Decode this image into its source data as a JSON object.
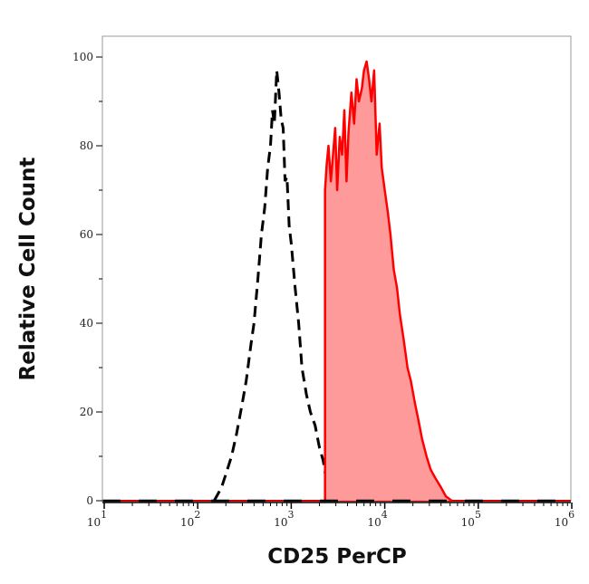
{
  "chart_data": {
    "type": "area",
    "title": "",
    "xlabel": "CD25 PerCP",
    "ylabel": "Relative Cell Count",
    "x_scale": "log",
    "xlim": [
      7,
      1000000
    ],
    "ylim": [
      0,
      100
    ],
    "x_ticks": [
      {
        "base": "10",
        "exp": "1",
        "value": 10
      },
      {
        "base": "10",
        "exp": "2",
        "value": 100
      },
      {
        "base": "10",
        "exp": "3",
        "value": 1000
      },
      {
        "base": "10",
        "exp": "4",
        "value": 10000
      },
      {
        "base": "10",
        "exp": "5",
        "value": 100000
      },
      {
        "base": "10",
        "exp": "6",
        "value": 1000000
      }
    ],
    "y_ticks": [
      "0",
      "20",
      "40",
      "60",
      "80",
      "100"
    ],
    "grid": false,
    "series": [
      {
        "style": "dashed-line",
        "color": "#000000",
        "x": [
          150,
          180,
          200,
          230,
          260,
          300,
          330,
          370,
          400,
          440,
          480,
          520,
          560,
          600,
          630,
          660,
          700,
          740,
          780,
          820,
          860,
          900,
          950,
          1000,
          1100,
          1200,
          1300,
          1450,
          1600,
          1800,
          2000,
          2200,
          2400,
          2600
        ],
        "y": [
          0,
          3,
          6,
          10,
          15,
          22,
          27,
          35,
          40,
          50,
          60,
          66,
          75,
          80,
          88,
          85,
          97,
          92,
          86,
          84,
          72,
          73,
          62,
          58,
          48,
          40,
          30,
          24,
          20,
          17,
          12,
          9,
          4,
          0
        ]
      },
      {
        "style": "filled",
        "color": "#ff0000",
        "fill": "#ff9a9a",
        "x": [
          2300,
          2300,
          2400,
          2500,
          2650,
          2800,
          2950,
          3100,
          3300,
          3500,
          3700,
          3900,
          4100,
          4400,
          4700,
          5000,
          5300,
          5700,
          6000,
          6400,
          6800,
          7200,
          7700,
          8200,
          8800,
          9300,
          10000,
          10800,
          11500,
          12500,
          13500,
          14500,
          16000,
          17500,
          19000,
          21000,
          23000,
          25000,
          28000,
          31000,
          35000,
          40000,
          45000,
          52000
        ],
        "y": [
          0,
          70,
          76,
          80,
          72,
          78,
          84,
          70,
          82,
          78,
          88,
          72,
          83,
          92,
          85,
          95,
          90,
          93,
          97,
          99,
          95,
          90,
          97,
          78,
          85,
          75,
          70,
          65,
          60,
          52,
          48,
          42,
          36,
          30,
          27,
          22,
          18,
          14,
          10,
          7,
          5,
          3,
          1,
          0
        ]
      }
    ]
  }
}
